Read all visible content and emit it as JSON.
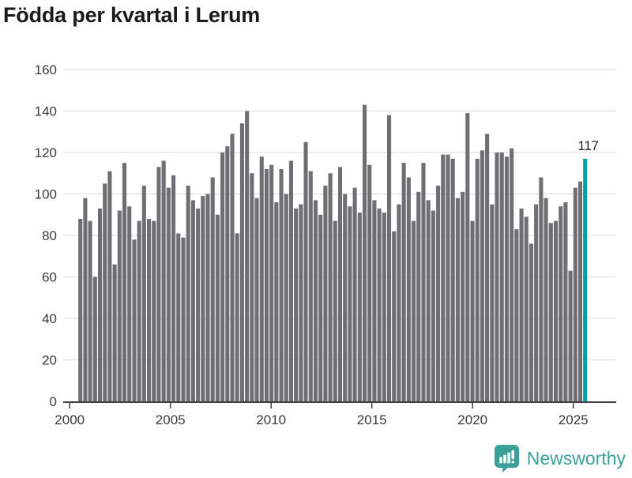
{
  "title": "Födda per kvartal i Lerum",
  "chart_data": {
    "type": "bar",
    "title": "Födda per kvartal i Lerum",
    "frequency": "quarterly",
    "start_period": "2000 Q1",
    "end_period": "2025 Q4",
    "values": [
      88,
      98,
      87,
      60,
      93,
      105,
      111,
      66,
      92,
      115,
      94,
      78,
      87,
      104,
      88,
      87,
      113,
      116,
      103,
      109,
      81,
      79,
      104,
      97,
      93,
      99,
      100,
      108,
      90,
      120,
      123,
      129,
      81,
      134,
      140,
      110,
      98,
      118,
      112,
      114,
      96,
      112,
      100,
      116,
      93,
      95,
      125,
      111,
      97,
      90,
      104,
      110,
      87,
      113,
      100,
      94,
      103,
      91,
      143,
      114,
      97,
      93,
      91,
      138,
      82,
      95,
      115,
      108,
      87,
      101,
      115,
      97,
      92,
      104,
      119,
      119,
      117,
      98,
      101,
      139,
      87,
      117,
      121,
      129,
      95,
      120,
      120,
      118,
      122,
      83,
      93,
      89,
      76,
      95,
      108,
      98,
      86,
      87,
      94,
      96,
      63,
      103,
      106,
      117
    ],
    "highlight": {
      "index": 103,
      "value": 117,
      "label": "117",
      "color": "#00a29b"
    },
    "bar_color": "#6f6f73",
    "x_tick_labels": [
      "2000",
      "2005",
      "2010",
      "2015",
      "2020",
      "2025"
    ],
    "y_tick_labels": [
      "0",
      "20",
      "40",
      "60",
      "80",
      "100",
      "120",
      "140",
      "160"
    ],
    "ylim": [
      0,
      160
    ],
    "grid": true,
    "grid_color": "#e0e0e0",
    "axis_color": "#3f3f3f",
    "tick_label_color": "#3a3a3a",
    "annotation_color": "#222222",
    "legend": "none"
  },
  "branding": {
    "logo_text": "Newsworthy",
    "logo_color": "#3aa098",
    "logo_icon": "bar-chart-speech-bubble-icon"
  }
}
